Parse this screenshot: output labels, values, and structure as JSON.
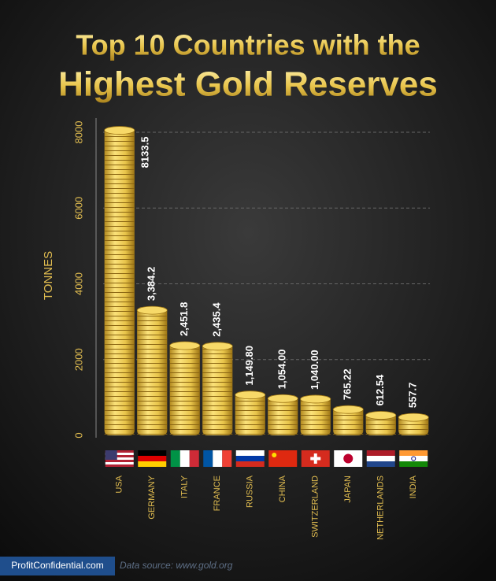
{
  "chart_data": {
    "type": "bar",
    "title": [
      "Top 10 Countries with the",
      "Highest Gold Reserves"
    ],
    "y_label": "TONNES",
    "categories": [
      "USA",
      "GERMANY",
      "ITALY",
      "FRANCE",
      "RUSSIA",
      "CHINA",
      "SWITZERLAND",
      "JAPAN",
      "NETHERLANDS",
      "INDIA"
    ],
    "values": [
      8133.5,
      3384.2,
      2451.8,
      2435.4,
      1149.8,
      1054,
      1040,
      765.22,
      612.54,
      557.7
    ],
    "value_labels": [
      "8133.5",
      "3,384.2",
      "2,451.8",
      "2,435.4",
      "1,149.80",
      "1,054.00",
      "1,040.00",
      "765.22",
      "612.54",
      "557.7"
    ],
    "color": "#e8c44a",
    "ylim": [
      0,
      8000
    ],
    "yticks": [
      0,
      2000,
      4000,
      6000,
      8000
    ],
    "grid": true,
    "footer": {
      "brand": "ProfitConfidential.com",
      "source": "Data source: www.gold.org"
    }
  }
}
